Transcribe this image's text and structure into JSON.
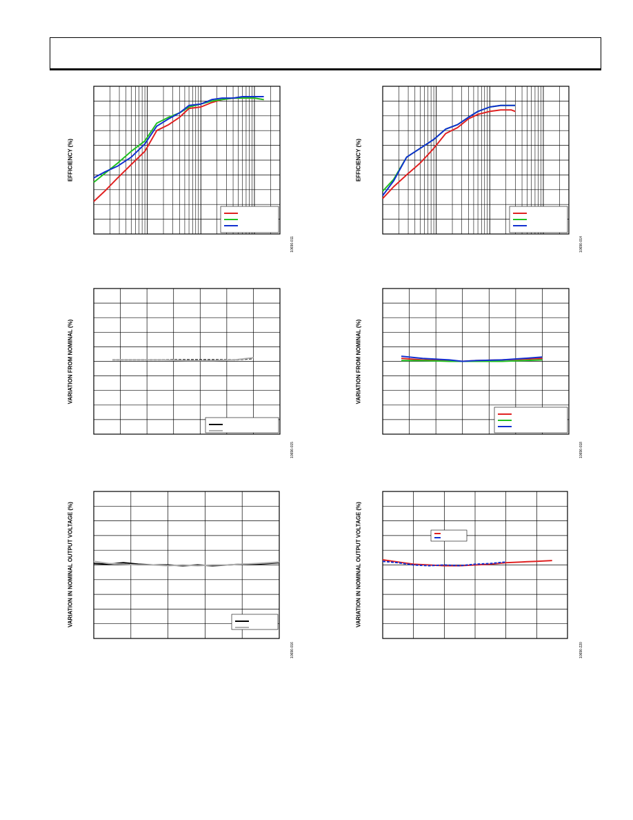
{
  "chart_data": [
    {
      "id": "c1",
      "type": "line",
      "ylabel": "EFFICIENCY (%)",
      "fig_id": "10696-011",
      "xscale": "log",
      "xlim": [
        0.0001,
        0.3
      ],
      "ylim": [
        0,
        100
      ],
      "legend": "bottom-right",
      "series": [
        {
          "color": "#e02020",
          "x": [
            0.0001,
            0.00016,
            0.00028,
            0.0005,
            0.0009,
            0.0015,
            0.0025,
            0.004,
            0.006,
            0.01,
            0.016,
            0.025,
            0.04,
            0.06,
            0.1,
            0.15
          ],
          "y": [
            22,
            29,
            38,
            47,
            56,
            70,
            74,
            79,
            85,
            86,
            89,
            91,
            92,
            92,
            92,
            91
          ]
        },
        {
          "color": "#20c020",
          "x": [
            0.0001,
            0.00016,
            0.00028,
            0.0005,
            0.0009,
            0.0015,
            0.0025,
            0.004,
            0.006,
            0.01,
            0.016,
            0.025,
            0.04,
            0.06,
            0.1,
            0.15
          ],
          "y": [
            35,
            41,
            48,
            56,
            63,
            75,
            79,
            82,
            86,
            88,
            90,
            91,
            92,
            92,
            92,
            91
          ]
        },
        {
          "color": "#1030d0",
          "x": [
            0.0001,
            0.00016,
            0.00028,
            0.0005,
            0.0009,
            0.0015,
            0.0025,
            0.004,
            0.006,
            0.01,
            0.016,
            0.025,
            0.04,
            0.06,
            0.1,
            0.15
          ],
          "y": [
            38,
            42,
            46,
            52,
            61,
            73,
            78,
            82,
            87,
            88,
            91,
            92,
            92,
            93,
            93,
            93
          ]
        }
      ]
    },
    {
      "id": "c2",
      "type": "line",
      "ylabel": "EFFICIENCY (%)",
      "fig_id": "10696-014",
      "xscale": "log",
      "xlim": [
        0.0001,
        0.3
      ],
      "ylim": [
        0,
        100
      ],
      "legend": "bottom-right",
      "series": [
        {
          "color": "#e02020",
          "x": [
            0.0001,
            0.00016,
            0.00028,
            0.0005,
            0.0009,
            0.0015,
            0.0025,
            0.004,
            0.006,
            0.01,
            0.016,
            0.025,
            0.03
          ],
          "y": [
            24,
            32,
            40,
            48,
            58,
            68,
            72,
            78,
            81,
            83,
            84,
            84,
            83
          ]
        },
        {
          "color": "#20c020",
          "x": [
            0.0001,
            0.00016,
            0.00028,
            0.0005,
            0.0009,
            0.0015,
            0.0025,
            0.004,
            0.006,
            0.01,
            0.016,
            0.025,
            0.03
          ],
          "y": [
            29,
            37,
            52,
            58,
            64,
            71,
            74,
            79,
            83,
            86,
            87,
            87,
            87
          ]
        },
        {
          "color": "#1030d0",
          "x": [
            0.0001,
            0.00016,
            0.00028,
            0.0005,
            0.0009,
            0.0015,
            0.0025,
            0.004,
            0.006,
            0.01,
            0.016,
            0.025,
            0.03
          ],
          "y": [
            26,
            36,
            52,
            58,
            64,
            71,
            74,
            79,
            83,
            86,
            87,
            87,
            87
          ]
        }
      ]
    },
    {
      "id": "c3",
      "type": "line",
      "ylabel": "VARIATION FROM NOMINAL (%)",
      "fig_id": "10696-015",
      "xlim": [
        0,
        7
      ],
      "ylim": [
        -5,
        5
      ],
      "legend": "bottom-right",
      "series": [
        {
          "color": "#000000",
          "dash": true,
          "x": [
            0.7,
            1.5,
            2.5,
            3.5,
            4.5,
            5.3,
            6.0
          ],
          "y": [
            0.1,
            0.1,
            0.1,
            0.1,
            0.1,
            0.1,
            0.2
          ]
        },
        {
          "color": "#b0b0b0",
          "x": [
            0.7,
            1.5,
            2.5,
            3.5,
            4.5,
            5.3,
            6.0
          ],
          "y": [
            0.1,
            0.1,
            0.1,
            0.05,
            0.05,
            0.1,
            0.25
          ]
        }
      ]
    },
    {
      "id": "c4",
      "type": "line",
      "ylabel": "VARIATION FROM NOMINAL (%)",
      "fig_id": "10696-018",
      "xlim": [
        0,
        7
      ],
      "ylim": [
        -5,
        5
      ],
      "legend": "bottom-right",
      "series": [
        {
          "color": "#e02020",
          "x": [
            0.7,
            1.5,
            2.5,
            3.0,
            3.5,
            4.5,
            5.3,
            6.0
          ],
          "y": [
            0.2,
            0.1,
            0.05,
            0.0,
            0.05,
            0.1,
            0.15,
            0.2
          ]
        },
        {
          "color": "#20c020",
          "x": [
            0.7,
            1.5,
            2.5,
            3.0,
            3.5,
            4.5,
            5.3,
            6.0
          ],
          "y": [
            0.05,
            0.05,
            0.0,
            0.0,
            0.0,
            0.0,
            0.05,
            0.1
          ]
        },
        {
          "color": "#1030d0",
          "x": [
            0.7,
            1.5,
            2.5,
            3.0,
            3.5,
            4.5,
            5.3,
            6.0
          ],
          "y": [
            0.35,
            0.2,
            0.1,
            0.0,
            0.05,
            0.1,
            0.2,
            0.3
          ]
        }
      ]
    },
    {
      "id": "c5",
      "type": "line",
      "ylabel": "VARIATION IN NOMINAL OUTPUT VOLTAGE (%)",
      "fig_id": "10696-016",
      "xlim": [
        0,
        5
      ],
      "ylim": [
        -5,
        5
      ],
      "legend": "bottom-right",
      "series": [
        {
          "color": "#000000",
          "x": [
            0,
            0.4,
            0.8,
            1.2,
            1.6,
            2.0,
            2.4,
            2.8,
            3.2,
            3.6,
            4.0,
            4.4,
            5.0
          ],
          "y": [
            0.1,
            0.05,
            0.15,
            0.05,
            0.0,
            0.0,
            -0.05,
            0.0,
            -0.05,
            0.0,
            0.05,
            0.05,
            0.15
          ]
        },
        {
          "color": "#b0b0b0",
          "x": [
            0,
            0.4,
            0.8,
            1.2,
            1.6,
            2.0,
            2.4,
            2.8,
            3.2,
            3.6,
            4.0,
            4.4,
            5.0
          ],
          "y": [
            0.25,
            0.1,
            0.05,
            0.0,
            0.0,
            -0.05,
            0.0,
            -0.05,
            0.0,
            0.0,
            0.05,
            0.1,
            0.2
          ]
        }
      ]
    },
    {
      "id": "c6",
      "type": "line",
      "ylabel": "VARIATION IN NOMINAL OUTPUT VOLTAGE (%)",
      "fig_id": "10696-220",
      "xlim": [
        0,
        6
      ],
      "ylim": [
        -5,
        5
      ],
      "legend": "upper-left",
      "series": [
        {
          "color": "#e02020",
          "x": [
            0,
            0.5,
            1.0,
            1.5,
            2.0,
            2.5,
            3.0,
            3.5,
            4.0,
            4.5,
            5.0,
            5.5
          ],
          "y": [
            0.35,
            0.2,
            0.05,
            0.0,
            -0.05,
            -0.05,
            0.0,
            0.05,
            0.15,
            0.2,
            0.25,
            0.3
          ]
        },
        {
          "color": "#1030d0",
          "dash": true,
          "x": [
            0,
            0.5,
            1.0,
            1.5,
            2.0,
            2.5,
            3.0,
            3.5,
            4.0
          ],
          "y": [
            0.25,
            0.15,
            0.0,
            -0.05,
            0.0,
            -0.05,
            0.05,
            0.1,
            0.2
          ]
        }
      ]
    }
  ]
}
